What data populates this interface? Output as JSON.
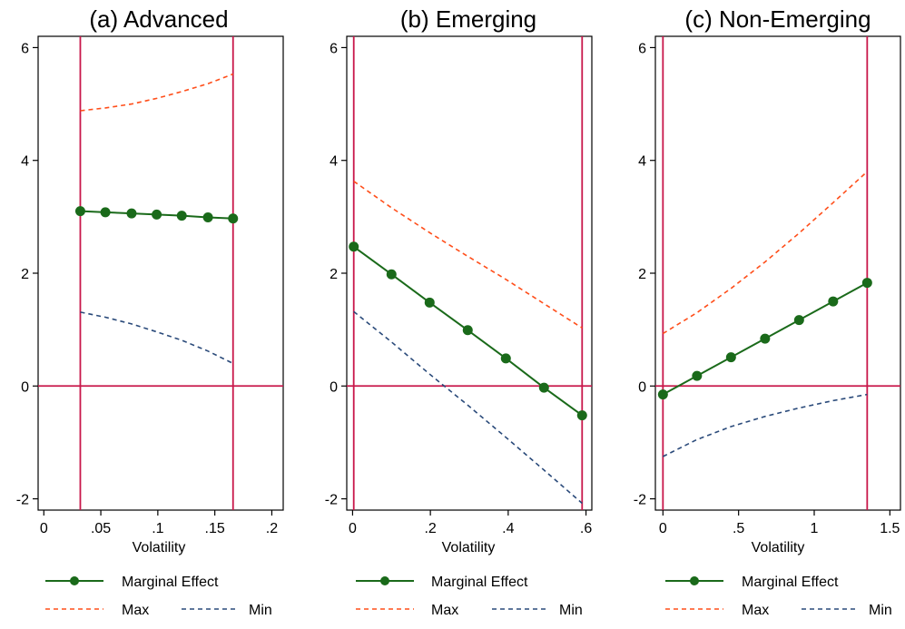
{
  "colors": {
    "marginal": "#1a6a1a",
    "max": "#ff4e1a",
    "min": "#2a4a7a",
    "reference": "#c8174a",
    "axis": "#000000"
  },
  "legend": {
    "marginal_label": "Marginal Effect",
    "max_label": "Max",
    "min_label": "Min"
  },
  "chart_data": [
    {
      "type": "line",
      "title": "(a) Advanced",
      "xlabel": "Volatility",
      "ylabel": "",
      "xlim": [
        -0.005,
        0.21
      ],
      "ylim": [
        -2.2,
        6.2
      ],
      "xticks": [
        0,
        0.05,
        0.1,
        0.15,
        0.2
      ],
      "xtick_labels": [
        "0",
        ".05",
        ".1",
        ".15",
        ".2"
      ],
      "yticks": [
        -2,
        0,
        2,
        4,
        6
      ],
      "ytick_labels": [
        "-2",
        "0",
        "2",
        "4",
        "6"
      ],
      "vlines": [
        0.032,
        0.166
      ],
      "hline": 0,
      "legend_position": "bottom",
      "series": [
        {
          "name": "Marginal Effect",
          "style": "solid-markers",
          "x": [
            0.032,
            0.054,
            0.077,
            0.099,
            0.121,
            0.144,
            0.166
          ],
          "y": [
            3.1,
            3.08,
            3.06,
            3.04,
            3.02,
            2.99,
            2.97
          ]
        },
        {
          "name": "Max",
          "style": "dashed",
          "x": [
            0.032,
            0.054,
            0.077,
            0.099,
            0.121,
            0.144,
            0.166
          ],
          "y": [
            4.88,
            4.93,
            5.0,
            5.1,
            5.22,
            5.36,
            5.53
          ]
        },
        {
          "name": "Min",
          "style": "dashed",
          "x": [
            0.032,
            0.054,
            0.077,
            0.099,
            0.121,
            0.144,
            0.166
          ],
          "y": [
            1.31,
            1.22,
            1.1,
            0.96,
            0.81,
            0.62,
            0.4
          ]
        }
      ]
    },
    {
      "type": "line",
      "title": "(b) Emerging",
      "xlabel": "Volatility",
      "ylabel": "",
      "xlim": [
        -0.015,
        0.615
      ],
      "ylim": [
        -2.2,
        6.2
      ],
      "xticks": [
        0,
        0.2,
        0.4,
        0.6
      ],
      "xtick_labels": [
        "0",
        ".2",
        ".4",
        ".6"
      ],
      "yticks": [
        -2,
        0,
        2,
        4,
        6
      ],
      "ytick_labels": [
        "-2",
        "0",
        "2",
        "4",
        "6"
      ],
      "vlines": [
        0.003,
        0.59
      ],
      "hline": 0,
      "legend_position": "bottom",
      "series": [
        {
          "name": "Marginal Effect",
          "style": "solid-markers",
          "x": [
            0.003,
            0.1,
            0.198,
            0.296,
            0.394,
            0.492,
            0.59
          ],
          "y": [
            2.47,
            1.98,
            1.48,
            0.99,
            0.49,
            -0.03,
            -0.52
          ]
        },
        {
          "name": "Max",
          "style": "dashed",
          "x": [
            0.003,
            0.1,
            0.198,
            0.296,
            0.394,
            0.492,
            0.59
          ],
          "y": [
            3.63,
            3.16,
            2.72,
            2.3,
            1.89,
            1.46,
            1.03
          ]
        },
        {
          "name": "Min",
          "style": "dashed",
          "x": [
            0.003,
            0.1,
            0.198,
            0.296,
            0.394,
            0.492,
            0.59
          ],
          "y": [
            1.32,
            0.78,
            0.21,
            -0.34,
            -0.91,
            -1.49,
            -2.08
          ]
        }
      ]
    },
    {
      "type": "line",
      "title": "(c) Non-Emerging",
      "xlabel": "Volatility",
      "ylabel": "",
      "xlim": [
        -0.05,
        1.57
      ],
      "ylim": [
        -2.2,
        6.2
      ],
      "xticks": [
        0,
        0.5,
        1,
        1.5
      ],
      "xtick_labels": [
        "0",
        ".5",
        "1",
        "1.5"
      ],
      "yticks": [
        -2,
        0,
        2,
        4,
        6
      ],
      "ytick_labels": [
        "-2",
        "0",
        "2",
        "4",
        "6"
      ],
      "vlines": [
        0.0,
        1.35
      ],
      "hline": 0,
      "legend_position": "bottom",
      "series": [
        {
          "name": "Marginal Effect",
          "style": "solid-markers",
          "x": [
            0.0,
            0.225,
            0.45,
            0.675,
            0.9,
            1.125,
            1.35
          ],
          "y": [
            -0.15,
            0.18,
            0.51,
            0.84,
            1.17,
            1.5,
            1.83
          ]
        },
        {
          "name": "Max",
          "style": "dashed",
          "x": [
            0.0,
            0.225,
            0.45,
            0.675,
            0.9,
            1.125,
            1.35
          ],
          "y": [
            0.93,
            1.3,
            1.73,
            2.2,
            2.71,
            3.25,
            3.8
          ]
        },
        {
          "name": "Min",
          "style": "dashed",
          "x": [
            0.0,
            0.225,
            0.45,
            0.675,
            0.9,
            1.125,
            1.35
          ],
          "y": [
            -1.25,
            -0.95,
            -0.72,
            -0.54,
            -0.39,
            -0.26,
            -0.15
          ]
        }
      ]
    }
  ]
}
